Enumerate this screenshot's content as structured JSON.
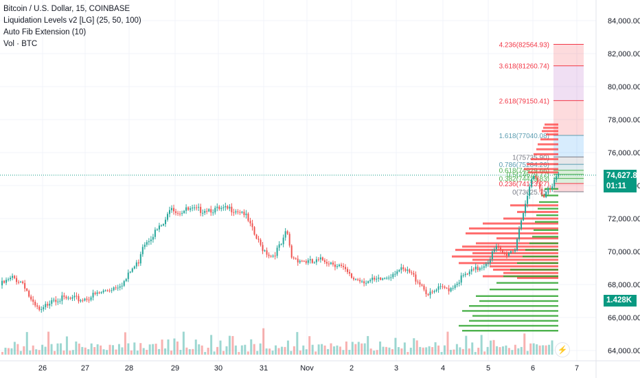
{
  "legend": {
    "symbol": "Bitcoin / U.S. Dollar, 15, COINBASE",
    "indicator1": "Liquidation Levels v2 [LG] (25, 50, 100)",
    "indicator2": "Auto Fib Extension (10)",
    "indicator3": "Vol · BTC"
  },
  "badges": {
    "last_price": "74,627.87",
    "countdown": "01:11",
    "volume": "1.428K"
  },
  "colors": {
    "up": "#26a69a",
    "down": "#ef5350",
    "price_badge": "#089981",
    "liq_red": "#ff3b3b",
    "liq_green": "#2ea52e",
    "fib_red": "#f23645",
    "fib_teal": "#5b9cb0"
  },
  "icons": {
    "flash": "lightning-icon"
  },
  "chart_data": {
    "type": "candlestick",
    "title": "",
    "x_ticks": [
      "26",
      "27",
      "28",
      "29",
      "30",
      "31",
      "Nov",
      "2",
      "3",
      "4",
      "5",
      "6",
      "7"
    ],
    "y_ticks": [
      "84,000.00",
      "82,000.00",
      "80,000.00",
      "78,000.00",
      "76,000.00",
      "74,000.00",
      "72,000.00",
      "70,000.00",
      "68,000.00",
      "66,000.00",
      "64,000.00"
    ],
    "ylim": [
      63600,
      84800
    ],
    "last_price": 74627.87,
    "price_path": [
      [
        0,
        67950
      ],
      [
        0.3,
        68400
      ],
      [
        0.55,
        68100
      ],
      [
        0.75,
        66800
      ],
      [
        0.95,
        66300
      ],
      [
        1.2,
        67200
      ],
      [
        1.5,
        67100
      ],
      [
        1.9,
        67100
      ],
      [
        2.3,
        67450
      ],
      [
        2.6,
        67800
      ],
      [
        2.9,
        68200
      ],
      [
        3.05,
        68900
      ],
      [
        3.2,
        69300
      ],
      [
        3.3,
        70400
      ],
      [
        3.6,
        71200
      ],
      [
        3.85,
        71800
      ],
      [
        3.95,
        72900
      ],
      [
        4.1,
        72400
      ],
      [
        4.3,
        72500
      ],
      [
        4.6,
        72500
      ],
      [
        4.8,
        72600
      ],
      [
        5.1,
        72500
      ],
      [
        5.4,
        72600
      ],
      [
        5.65,
        72400
      ],
      [
        5.9,
        71000
      ],
      [
        6.05,
        70300
      ],
      [
        6.3,
        69700
      ],
      [
        6.55,
        70500
      ],
      [
        6.65,
        71300
      ],
      [
        6.75,
        69700
      ],
      [
        6.95,
        69500
      ],
      [
        7.25,
        69300
      ],
      [
        7.5,
        69500
      ],
      [
        7.85,
        69200
      ],
      [
        8.15,
        68400
      ],
      [
        8.35,
        68300
      ],
      [
        8.55,
        68200
      ],
      [
        8.75,
        68200
      ],
      [
        9.0,
        68500
      ],
      [
        9.2,
        68900
      ],
      [
        9.5,
        68700
      ],
      [
        9.75,
        68100
      ],
      [
        9.95,
        67300
      ],
      [
        10.15,
        67700
      ],
      [
        10.45,
        67800
      ],
      [
        10.7,
        68400
      ],
      [
        10.9,
        68700
      ],
      [
        11.1,
        69000
      ],
      [
        11.3,
        69400
      ],
      [
        11.5,
        70200
      ],
      [
        11.7,
        69800
      ],
      [
        11.95,
        70200
      ],
      [
        12.05,
        71700
      ],
      [
        12.2,
        72800
      ],
      [
        12.35,
        74600
      ],
      [
        12.5,
        74200
      ],
      [
        12.6,
        73200
      ],
      [
        12.7,
        73900
      ],
      [
        12.85,
        74200
      ],
      [
        12.95,
        74628
      ]
    ],
    "volume_series": [
      {
        "name": "Vol · BTC",
        "values": [
          2,
          3,
          2,
          4,
          5,
          3,
          2,
          3,
          6,
          2,
          3,
          4,
          2,
          3,
          5,
          9,
          3,
          2,
          4,
          3,
          2,
          6,
          3,
          2,
          4,
          7,
          3,
          2,
          3,
          4,
          2,
          5,
          3,
          4,
          2,
          3,
          6,
          2,
          3,
          4,
          8,
          3,
          2,
          4,
          3,
          5,
          2,
          3,
          4,
          3,
          6,
          2,
          4,
          3,
          5,
          3,
          7,
          4,
          3,
          9
        ]
      }
    ],
    "fib_levels": [
      {
        "label": "4.236(82564.93)",
        "price": 82564.93,
        "color": "#f23645"
      },
      {
        "label": "3.618(81260.74)",
        "price": 81260.74,
        "color": "#f23645"
      },
      {
        "label": "2.618(79150.41)",
        "price": 79150.41,
        "color": "#f23645"
      },
      {
        "label": "1.618(77040.08)",
        "price": 77040.08,
        "color": "#5b9cb0"
      },
      {
        "label": "1(75735.90)",
        "price": 75735.9,
        "color": "#787b86"
      },
      {
        "label": "0.786(75284.26)",
        "price": 75284.26,
        "color": "#5b9cb0"
      },
      {
        "label": "0.618(74929.66)",
        "price": 74929.66,
        "color": "#4caf50"
      },
      {
        "label": "0.5(74679.77)",
        "price": 74679.77,
        "color": "#4caf50"
      },
      {
        "label": "0.382(74429.83)",
        "price": 74429.83,
        "color": "#4caf50"
      },
      {
        "label": "0.236(74123.27)",
        "price": 74123.27,
        "color": "#f23645"
      },
      {
        "label": "0(73625.75)",
        "price": 73625.75,
        "color": "#787b86"
      }
    ],
    "liquidation_levels": {
      "red": [
        [
          77700,
          20
        ],
        [
          77500,
          22
        ],
        [
          77300,
          24
        ],
        [
          77100,
          18
        ],
        [
          76800,
          26
        ],
        [
          76500,
          30
        ],
        [
          76200,
          32
        ],
        [
          75900,
          36
        ],
        [
          75600,
          40
        ],
        [
          75300,
          46
        ],
        [
          75000,
          50
        ],
        [
          74800,
          44
        ],
        [
          72800,
          70
        ],
        [
          72400,
          60
        ],
        [
          72000,
          80
        ],
        [
          71700,
          110
        ],
        [
          71400,
          130
        ],
        [
          71100,
          135
        ],
        [
          70800,
          90
        ],
        [
          70500,
          120
        ],
        [
          70300,
          140
        ],
        [
          70100,
          150
        ],
        [
          69900,
          125
        ],
        [
          69700,
          155
        ],
        [
          69500,
          125
        ],
        [
          69300,
          145
        ],
        [
          69100,
          100
        ],
        [
          68900,
          95
        ],
        [
          68700,
          80
        ],
        [
          68500,
          110
        ],
        [
          68400,
          60
        ]
      ],
      "green": [
        [
          73800,
          20
        ],
        [
          73400,
          25
        ],
        [
          73000,
          28
        ],
        [
          72600,
          30
        ],
        [
          72200,
          32
        ],
        [
          71800,
          34
        ],
        [
          71300,
          36
        ],
        [
          70900,
          38
        ],
        [
          70500,
          42
        ],
        [
          70100,
          48
        ],
        [
          69700,
          52
        ],
        [
          69300,
          60
        ],
        [
          68900,
          70
        ],
        [
          68500,
          80
        ],
        [
          68100,
          90
        ],
        [
          67700,
          100
        ],
        [
          67300,
          120
        ],
        [
          67000,
          115
        ],
        [
          66700,
          130
        ],
        [
          66400,
          140
        ],
        [
          66100,
          125
        ],
        [
          65800,
          130
        ],
        [
          65500,
          145
        ],
        [
          65200,
          140
        ]
      ]
    }
  }
}
